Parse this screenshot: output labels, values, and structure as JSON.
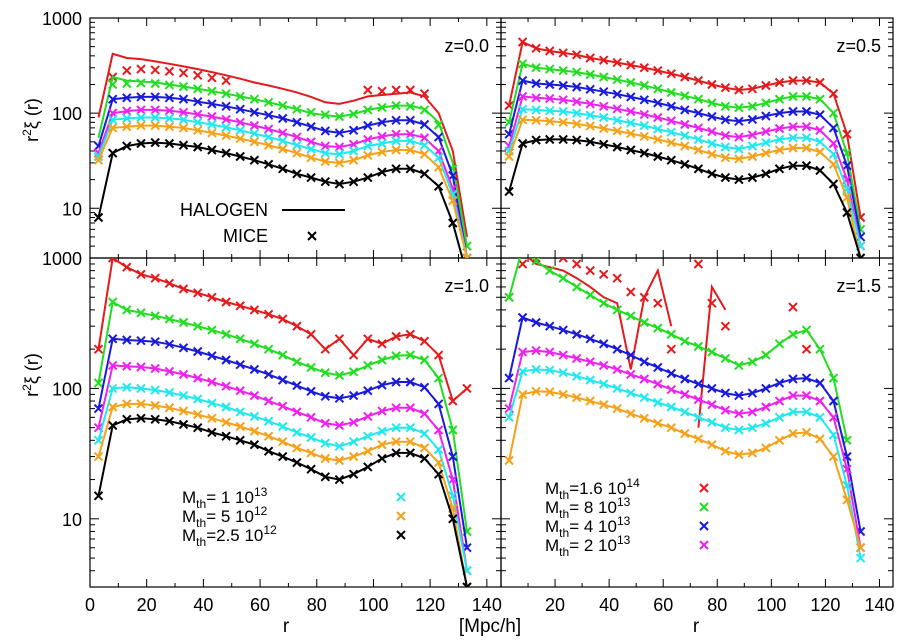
{
  "colors": {
    "red": "#e41a1c",
    "green": "#22dd22",
    "blue": "#1a1adb",
    "magenta": "#ee22ee",
    "cyan": "#22e8ee",
    "orange": "#f5a21a",
    "black": "#000000"
  },
  "figure": {
    "ylabel_base": "r",
    "ylabel_sup": "2",
    "ylabel_rest": "ξ (r)",
    "xlabel_left": "r",
    "xlabel_right": "r",
    "xunit": "[Mpc/h]",
    "ytick_labels": [
      "10",
      "100",
      "1000"
    ],
    "xtick_labels": [
      "0",
      "20",
      "40",
      "60",
      "80",
      "100",
      "120",
      "140"
    ],
    "legend_style": {
      "lines_label": "HALOGEN",
      "markers_label": "MICE"
    },
    "legend_mass_left": [
      {
        "sub": "th",
        "value": "=   1 10",
        "exp": "13",
        "color": "cyan"
      },
      {
        "sub": "th",
        "value": "=   5 10",
        "exp": "12",
        "color": "orange"
      },
      {
        "sub": "th",
        "value": "=2.5 10",
        "exp": "12",
        "color": "black"
      }
    ],
    "legend_mass_right": [
      {
        "sub": "th",
        "value": "=1.6 10",
        "exp": "14",
        "color": "red"
      },
      {
        "sub": "th",
        "value": "=   8 10",
        "exp": "13",
        "color": "green"
      },
      {
        "sub": "th",
        "value": "=   4 10",
        "exp": "13",
        "color": "blue"
      },
      {
        "sub": "th",
        "value": "=   2 10",
        "exp": "13",
        "color": "magenta"
      }
    ]
  },
  "chart_data": [
    {
      "type": "line",
      "title": "z=0.0",
      "x": [
        3,
        8,
        13,
        18,
        23,
        28,
        33,
        38,
        43,
        48,
        53,
        58,
        63,
        68,
        73,
        78,
        83,
        88,
        93,
        98,
        103,
        108,
        113,
        118,
        123,
        128,
        133
      ],
      "xlim": [
        0,
        145
      ],
      "ylim": [
        3,
        1000
      ],
      "yscale": "log",
      "series": [
        {
          "color": "red",
          "line": [
            90,
            420,
            380,
            370,
            350,
            330,
            310,
            290,
            270,
            250,
            230,
            210,
            195,
            180,
            165,
            148,
            130,
            125,
            135,
            150,
            155,
            160,
            165,
            150,
            100,
            40,
            5
          ],
          "markers": [
            null,
            240,
            280,
            290,
            285,
            275,
            265,
            250,
            235,
            220,
            null,
            null,
            null,
            null,
            null,
            null,
            null,
            null,
            null,
            175,
            170,
            175,
            175,
            160,
            null,
            null,
            null
          ]
        },
        {
          "color": "green",
          "line": [
            55,
            240,
            220,
            215,
            210,
            200,
            190,
            180,
            170,
            160,
            150,
            140,
            130,
            120,
            110,
            100,
            95,
            92,
            98,
            108,
            115,
            120,
            120,
            110,
            80,
            30,
            4
          ],
          "markers": [
            35,
            200,
            205,
            208,
            205,
            198,
            190,
            180,
            170,
            160,
            150,
            140,
            130,
            120,
            110,
            102,
            96,
            92,
            98,
            108,
            115,
            120,
            118,
            108,
            75,
            26,
            4
          ]
        },
        {
          "color": "blue",
          "line": [
            45,
            140,
            145,
            148,
            148,
            145,
            140,
            132,
            125,
            118,
            110,
            102,
            95,
            88,
            80,
            72,
            65,
            62,
            66,
            74,
            80,
            84,
            84,
            76,
            56,
            22,
            3
          ]
        },
        {
          "color": "magenta",
          "line": [
            38,
            100,
            105,
            108,
            108,
            106,
            102,
            97,
            92,
            86,
            80,
            74,
            68,
            62,
            56,
            50,
            45,
            44,
            47,
            53,
            57,
            60,
            60,
            55,
            40,
            16,
            3
          ]
        },
        {
          "color": "cyan",
          "line": [
            35,
            85,
            88,
            90,
            90,
            88,
            85,
            80,
            76,
            71,
            66,
            61,
            56,
            51,
            46,
            42,
            38,
            37,
            40,
            45,
            48,
            51,
            51,
            46,
            34,
            14,
            3
          ]
        },
        {
          "color": "orange",
          "line": [
            32,
            70,
            72,
            74,
            74,
            72,
            70,
            66,
            62,
            58,
            54,
            50,
            46,
            42,
            38,
            34,
            31,
            30,
            32,
            36,
            39,
            41,
            41,
            37,
            27,
            12,
            3
          ]
        },
        {
          "color": "black",
          "line": [
            8,
            38,
            45,
            48,
            49,
            48,
            46,
            44,
            41,
            38,
            35,
            32,
            29,
            26,
            23,
            21,
            19,
            18,
            19,
            21,
            24,
            26,
            26,
            23,
            17,
            7,
            2
          ]
        }
      ]
    },
    {
      "type": "line",
      "title": "z=0.5",
      "x": [
        3,
        8,
        13,
        18,
        23,
        28,
        33,
        38,
        43,
        48,
        53,
        58,
        63,
        68,
        73,
        78,
        83,
        88,
        93,
        98,
        103,
        108,
        113,
        118,
        123,
        128,
        133
      ],
      "xlim": [
        0,
        145
      ],
      "ylim": [
        3,
        1000
      ],
      "yscale": "log",
      "series": [
        {
          "color": "red",
          "line": [
            120,
            560,
            480,
            450,
            430,
            410,
            380,
            360,
            340,
            320,
            300,
            280,
            260,
            240,
            220,
            200,
            185,
            175,
            180,
            195,
            210,
            220,
            220,
            210,
            160,
            60,
            8
          ]
        },
        {
          "color": "green",
          "line": [
            80,
            330,
            300,
            290,
            280,
            270,
            255,
            240,
            225,
            210,
            195,
            180,
            165,
            152,
            140,
            128,
            118,
            114,
            118,
            128,
            140,
            150,
            150,
            140,
            100,
            38,
            6
          ]
        },
        {
          "color": "blue",
          "line": [
            60,
            220,
            205,
            200,
            195,
            188,
            178,
            168,
            158,
            148,
            138,
            128,
            118,
            108,
            100,
            92,
            85,
            82,
            86,
            93,
            100,
            104,
            104,
            96,
            70,
            28,
            5
          ]
        },
        {
          "color": "magenta",
          "line": [
            45,
            150,
            145,
            142,
            138,
            132,
            125,
            118,
            111,
            104,
            97,
            90,
            83,
            76,
            70,
            64,
            58,
            56,
            59,
            64,
            69,
            72,
            72,
            66,
            48,
            20,
            4
          ]
        },
        {
          "color": "cyan",
          "line": [
            40,
            110,
            108,
            106,
            104,
            100,
            95,
            90,
            84,
            79,
            74,
            68,
            63,
            58,
            53,
            48,
            44,
            42,
            45,
            49,
            53,
            55,
            55,
            50,
            37,
            16,
            4
          ]
        },
        {
          "color": "orange",
          "line": [
            35,
            85,
            84,
            82,
            80,
            77,
            73,
            69,
            65,
            61,
            57,
            53,
            49,
            45,
            41,
            37,
            34,
            33,
            35,
            38,
            41,
            43,
            43,
            39,
            29,
            13,
            3
          ]
        },
        {
          "color": "black",
          "line": [
            15,
            48,
            52,
            53,
            53,
            52,
            50,
            47,
            44,
            41,
            38,
            35,
            32,
            29,
            26,
            23,
            21,
            20,
            21,
            23,
            26,
            28,
            28,
            25,
            18,
            9,
            3
          ]
        }
      ]
    },
    {
      "type": "line",
      "title": "z=1.0",
      "x": [
        3,
        8,
        13,
        18,
        23,
        28,
        33,
        38,
        43,
        48,
        53,
        58,
        63,
        68,
        73,
        78,
        83,
        88,
        93,
        98,
        103,
        108,
        113,
        118,
        123,
        128,
        133
      ],
      "xlim": [
        0,
        145
      ],
      "ylim": [
        3,
        1000
      ],
      "yscale": "log",
      "series": [
        {
          "color": "red",
          "line": [
            200,
            1000,
            850,
            750,
            700,
            640,
            580,
            540,
            500,
            460,
            430,
            400,
            370,
            340,
            300,
            260,
            200,
            240,
            180,
            240,
            220,
            250,
            260,
            230,
            180,
            80,
            100
          ]
        },
        {
          "color": "green",
          "line": [
            110,
            460,
            400,
            380,
            360,
            340,
            320,
            300,
            280,
            260,
            240,
            220,
            200,
            180,
            160,
            145,
            132,
            126,
            134,
            150,
            165,
            178,
            180,
            165,
            120,
            48,
            8
          ]
        },
        {
          "color": "blue",
          "line": [
            70,
            240,
            235,
            232,
            228,
            218,
            205,
            192,
            178,
            165,
            152,
            140,
            128,
            116,
            105,
            95,
            87,
            84,
            88,
            96,
            106,
            112,
            112,
            102,
            76,
            30,
            6
          ]
        },
        {
          "color": "magenta",
          "line": [
            50,
            150,
            148,
            146,
            142,
            135,
            128,
            120,
            112,
            104,
            96,
            88,
            80,
            73,
            66,
            60,
            54,
            52,
            55,
            61,
            67,
            71,
            71,
            64,
            48,
            20,
            4
          ]
        },
        {
          "color": "cyan",
          "line": [
            40,
            100,
            102,
            100,
            97,
            93,
            88,
            83,
            77,
            72,
            66,
            61,
            56,
            51,
            46,
            42,
            38,
            36,
            39,
            43,
            47,
            50,
            50,
            45,
            34,
            15,
            4
          ]
        },
        {
          "color": "orange",
          "line": [
            30,
            72,
            76,
            76,
            74,
            71,
            67,
            63,
            59,
            55,
            51,
            47,
            43,
            39,
            35,
            32,
            29,
            28,
            30,
            33,
            37,
            39,
            39,
            35,
            27,
            12,
            3
          ]
        },
        {
          "color": "black",
          "line": [
            15,
            52,
            58,
            59,
            58,
            56,
            53,
            50,
            46,
            43,
            40,
            37,
            33,
            30,
            27,
            24,
            21,
            20,
            22,
            25,
            29,
            32,
            32,
            29,
            22,
            10,
            3
          ]
        }
      ]
    },
    {
      "type": "line",
      "title": "z=1.5",
      "x": [
        3,
        8,
        13,
        18,
        23,
        28,
        33,
        38,
        43,
        48,
        53,
        58,
        63,
        68,
        73,
        78,
        83,
        88,
        93,
        98,
        103,
        108,
        113,
        118,
        123,
        128,
        133
      ],
      "xlim": [
        0,
        145
      ],
      "ylim": [
        3,
        1000
      ],
      "yscale": "log",
      "series": [
        {
          "color": "red",
          "line": [
            null,
            1100,
            900,
            850,
            800,
            700,
            600,
            500,
            450,
            140,
            500,
            800,
            300,
            null,
            50,
            600,
            400,
            null,
            null,
            null,
            null,
            null,
            null,
            null,
            null,
            null,
            null
          ],
          "markers": [
            500,
            900,
            1000,
            1100,
            1000,
            900,
            800,
            750,
            700,
            550,
            500,
            450,
            200,
            null,
            900,
            450,
            300,
            null,
            null,
            null,
            null,
            420,
            200,
            null,
            null,
            null,
            null
          ]
        },
        {
          "color": "green",
          "line": [
            500,
            1200,
            950,
            800,
            700,
            600,
            520,
            450,
            400,
            360,
            320,
            290,
            260,
            230,
            210,
            190,
            170,
            150,
            160,
            180,
            220,
            260,
            280,
            200,
            120,
            40,
            null
          ]
        },
        {
          "color": "blue",
          "line": [
            120,
            350,
            320,
            300,
            280,
            260,
            240,
            220,
            200,
            180,
            160,
            145,
            130,
            118,
            108,
            100,
            92,
            88,
            92,
            100,
            110,
            118,
            120,
            110,
            80,
            30,
            8
          ]
        },
        {
          "color": "magenta",
          "line": [
            70,
            190,
            195,
            190,
            180,
            170,
            160,
            150,
            140,
            128,
            118,
            108,
            98,
            90,
            82,
            75,
            68,
            64,
            66,
            72,
            80,
            88,
            88,
            80,
            60,
            24,
            6
          ]
        },
        {
          "color": "cyan",
          "line": [
            60,
            135,
            140,
            138,
            132,
            124,
            116,
            108,
            100,
            92,
            85,
            78,
            72,
            66,
            60,
            55,
            50,
            48,
            50,
            54,
            60,
            66,
            66,
            60,
            44,
            18,
            5
          ]
        },
        {
          "color": "orange",
          "line": [
            28,
            90,
            95,
            94,
            90,
            85,
            80,
            75,
            70,
            64,
            59,
            54,
            50,
            45,
            41,
            37,
            33,
            31,
            32,
            35,
            40,
            45,
            46,
            41,
            30,
            14,
            6
          ]
        }
      ]
    }
  ]
}
